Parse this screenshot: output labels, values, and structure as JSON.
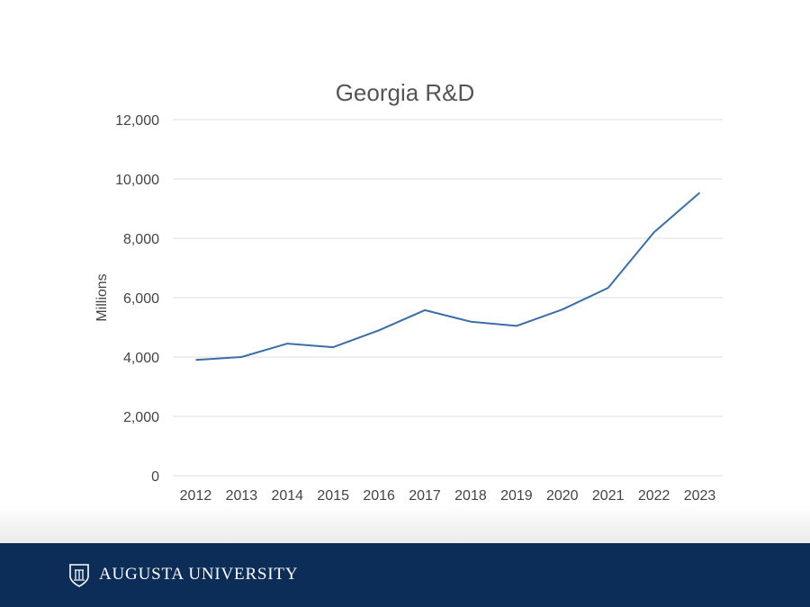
{
  "chart_data": {
    "type": "line",
    "title": "Georgia R&D",
    "xlabel": "",
    "ylabel": "Millions",
    "ylim": [
      0,
      12000
    ],
    "yticks": [
      0,
      2000,
      4000,
      6000,
      8000,
      10000,
      12000
    ],
    "ytick_labels": [
      "0",
      "2,000",
      "4,000",
      "6,000",
      "8,000",
      "10,000",
      "12,000"
    ],
    "grid": true,
    "categories": [
      "2012",
      "2013",
      "2014",
      "2015",
      "2016",
      "2017",
      "2018",
      "2019",
      "2020",
      "2021",
      "2022",
      "2023"
    ],
    "series": [
      {
        "name": "Georgia R&D",
        "values": [
          3900,
          4000,
          4450,
          4330,
          4900,
          5580,
          5190,
          5050,
          5600,
          6330,
          8200,
          9540
        ],
        "color": "#3a6ea8"
      }
    ]
  },
  "footer": {
    "brand": "AUGUSTA UNIVERSITY",
    "logo_icon": "shield-icon",
    "background": "#0c2d57"
  }
}
